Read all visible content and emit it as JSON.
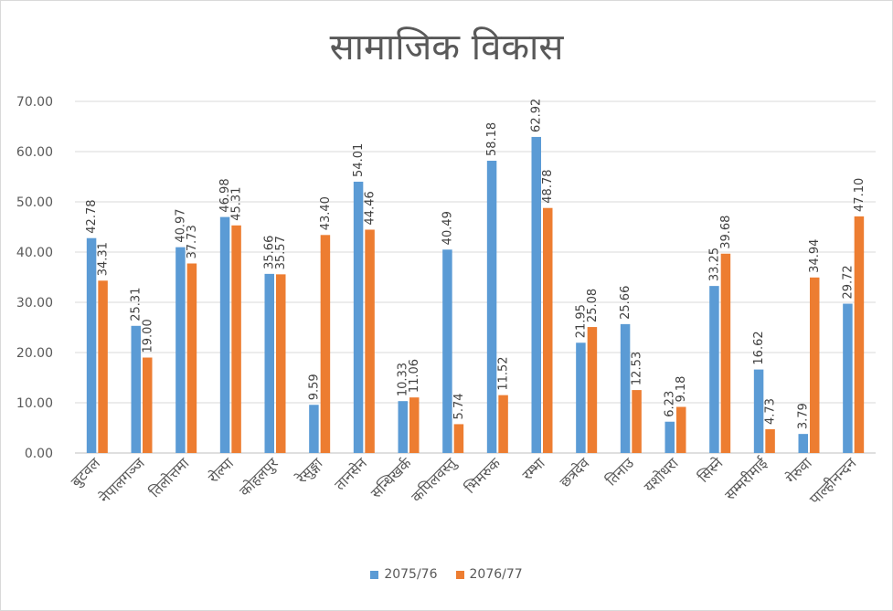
{
  "chart_data": {
    "type": "bar",
    "title": "सामाजिक विकास",
    "categories": [
      "बुटवल",
      "नेपालगञ्ज",
      "तिलोत्तमा",
      "रोल्पा",
      "कोहलपुर",
      "रेसुङ्गा",
      "तानसेन",
      "सन्धिखर्क",
      "कपिलवस्तु",
      "भिमरुक",
      "रम्भा",
      "छत्रदेव",
      "तिनाउ",
      "यशोधरा",
      "सिस्ने",
      "सम्मरीमाई",
      "गेरुवा",
      "पाल्हीनन्दन"
    ],
    "series": [
      {
        "name": "2075/76",
        "color": "#5b9bd5",
        "values": [
          42.78,
          25.31,
          40.97,
          46.98,
          35.66,
          9.59,
          54.01,
          10.33,
          40.49,
          58.18,
          62.92,
          21.95,
          25.66,
          6.23,
          33.25,
          16.62,
          3.79,
          29.72
        ],
        "labels": [
          "42.78",
          "25.31",
          "40.97",
          "46.98",
          "35.66",
          "9.59",
          "54.01",
          "10.33",
          "40.49",
          "58.18",
          "62.92",
          "21.95",
          "25.66",
          "6.23",
          "33.25",
          "16.62",
          "3.79",
          "29.72"
        ]
      },
      {
        "name": "2076/77",
        "color": "#ed7d31",
        "values": [
          34.31,
          19.0,
          37.73,
          45.31,
          35.57,
          43.4,
          44.46,
          11.06,
          5.74,
          11.52,
          48.78,
          25.08,
          12.53,
          9.18,
          39.68,
          4.73,
          34.94,
          47.1
        ],
        "labels": [
          "34.31",
          "19.00",
          "37.73",
          "45.31",
          "35.57",
          "43.40",
          "44.46",
          "11.06",
          "5.74",
          "11.52",
          "48.78",
          "25.08",
          "12.53",
          "9.18",
          "39.68",
          "4.73",
          "34.94",
          "47.10"
        ]
      }
    ],
    "ylim": [
      0,
      70
    ],
    "yticks": [
      "0.00",
      "10.00",
      "20.00",
      "30.00",
      "40.00",
      "50.00",
      "60.00",
      "70.00"
    ],
    "grid": true,
    "legend": "bottom",
    "xlabel": "",
    "ylabel": ""
  }
}
